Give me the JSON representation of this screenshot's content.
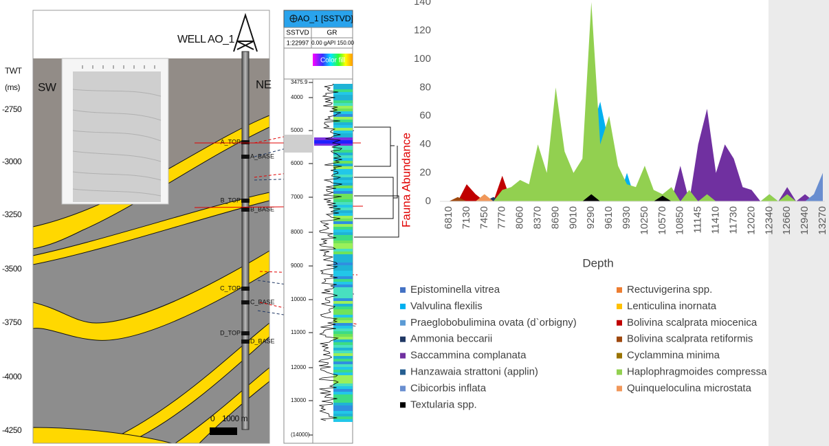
{
  "cross_section": {
    "well_name": "WELL AO_1",
    "axis_title": "TWT",
    "axis_unit": "(ms)",
    "left_label": "SW",
    "right_label": "NE",
    "twt_ticks": [
      "-2750",
      "-3000",
      "-3250",
      "-3500",
      "-3750",
      "-4000",
      "-4250"
    ],
    "horizons": [
      "A_TOP",
      "A_BASE",
      "B_TOP",
      "B_BASE",
      "C_TOP",
      "C_BASE",
      "D_TOP",
      "D_BASE"
    ],
    "scale_zero": "0",
    "scale_length": "1000 m"
  },
  "well_log": {
    "title": "AO_1 [SSTVD]",
    "depth_header": "SSTVD",
    "curve_header": "GR",
    "scale": "1:22997",
    "curve_range": "0.00 gAPI 150.00",
    "fill_label": "Color fill",
    "depths": [
      "3475.9",
      "4000",
      "5000",
      "6000",
      "7000",
      "8000",
      "9000",
      "10000",
      "11000",
      "12000",
      "13000",
      "(14000)"
    ]
  },
  "chart_data": {
    "type": "area",
    "x_label": "Depth",
    "y_label": "Fauna Abundance",
    "ylim": [
      0,
      140
    ],
    "yticks": [
      0,
      20,
      40,
      60,
      80,
      100,
      120,
      140
    ],
    "categories": [
      6810,
      null,
      7130,
      null,
      7450,
      null,
      7770,
      null,
      8060,
      null,
      8370,
      null,
      8690,
      null,
      9010,
      null,
      9290,
      null,
      9610,
      null,
      9930,
      null,
      10250,
      null,
      10570,
      null,
      10850,
      null,
      11145,
      null,
      11410,
      null,
      11730,
      null,
      12020,
      null,
      12340,
      null,
      12660,
      null,
      12940,
      null,
      13270
    ],
    "series": [
      {
        "name": "Epistominella vitrea",
        "color": "#4472c4",
        "values": [
          0,
          0,
          0,
          0,
          0,
          0,
          0,
          0,
          0,
          0,
          0,
          0,
          0,
          0,
          0,
          0,
          0,
          0,
          0,
          0,
          5,
          0,
          3,
          0,
          0,
          0,
          0,
          0,
          0,
          0,
          0,
          0,
          0,
          0,
          3,
          0,
          0,
          0,
          0,
          0,
          0,
          0,
          0
        ]
      },
      {
        "name": "Rectuvigerina spp.",
        "color": "#ed7d31",
        "values": [
          0,
          0,
          0,
          5,
          0,
          0,
          0,
          3,
          0,
          0,
          0,
          0,
          0,
          0,
          0,
          0,
          0,
          0,
          0,
          0,
          0,
          0,
          0,
          0,
          0,
          0,
          0,
          0,
          0,
          0,
          0,
          0,
          0,
          0,
          0,
          0,
          0,
          0,
          0,
          0,
          0,
          0,
          0
        ]
      },
      {
        "name": "Valvulina flexilis",
        "color": "#00b0f0",
        "values": [
          0,
          0,
          0,
          0,
          0,
          0,
          0,
          0,
          0,
          0,
          0,
          0,
          0,
          0,
          0,
          0,
          50,
          70,
          40,
          0,
          20,
          0,
          10,
          0,
          5,
          0,
          0,
          0,
          0,
          0,
          0,
          0,
          0,
          0,
          0,
          0,
          0,
          0,
          0,
          0,
          0,
          0,
          0
        ]
      },
      {
        "name": "Lenticulina inornata",
        "color": "#ffc000",
        "values": [
          0,
          0,
          0,
          0,
          0,
          0,
          0,
          0,
          0,
          0,
          0,
          0,
          0,
          0,
          0,
          0,
          0,
          0,
          0,
          0,
          0,
          0,
          0,
          0,
          0,
          0,
          0,
          0,
          0,
          0,
          0,
          0,
          0,
          0,
          0,
          0,
          0,
          0,
          0,
          0,
          3,
          0,
          5
        ]
      },
      {
        "name": "Praeglobobulimina ovata (d`orbigny)",
        "color": "#5b9bd5",
        "values": [
          0,
          0,
          0,
          0,
          0,
          0,
          0,
          0,
          0,
          0,
          0,
          0,
          0,
          0,
          0,
          0,
          0,
          0,
          0,
          0,
          0,
          0,
          25,
          0,
          0,
          0,
          0,
          0,
          0,
          0,
          0,
          0,
          0,
          0,
          0,
          0,
          5,
          0,
          0,
          0,
          0,
          0,
          0
        ]
      },
      {
        "name": "Bolivina scalprata miocenica",
        "color": "#c00000",
        "values": [
          0,
          0,
          12,
          5,
          0,
          0,
          18,
          0,
          0,
          8,
          0,
          5,
          0,
          0,
          0,
          0,
          0,
          0,
          0,
          0,
          0,
          0,
          0,
          0,
          0,
          0,
          0,
          0,
          0,
          0,
          0,
          0,
          0,
          0,
          0,
          0,
          0,
          0,
          0,
          0,
          0,
          0,
          0
        ]
      },
      {
        "name": "Ammonia beccarii",
        "color": "#203864",
        "values": [
          0,
          0,
          0,
          0,
          0,
          3,
          0,
          0,
          0,
          0,
          0,
          0,
          0,
          0,
          0,
          0,
          0,
          0,
          0,
          0,
          0,
          0,
          0,
          0,
          0,
          0,
          0,
          0,
          0,
          0,
          0,
          0,
          0,
          0,
          0,
          0,
          0,
          0,
          0,
          0,
          0,
          0,
          0
        ]
      },
      {
        "name": "Bolivina scalprata retiformis",
        "color": "#9e480e",
        "values": [
          0,
          3,
          0,
          0,
          0,
          0,
          0,
          0,
          0,
          0,
          0,
          0,
          0,
          0,
          0,
          0,
          0,
          0,
          0,
          0,
          0,
          0,
          0,
          0,
          0,
          0,
          0,
          0,
          0,
          0,
          0,
          0,
          0,
          0,
          0,
          0,
          0,
          0,
          0,
          0,
          0,
          0,
          0
        ]
      },
      {
        "name": "Saccammina complanata",
        "color": "#7030a0",
        "values": [
          0,
          0,
          0,
          0,
          0,
          0,
          0,
          0,
          0,
          0,
          0,
          10,
          20,
          0,
          0,
          0,
          0,
          0,
          0,
          0,
          0,
          0,
          0,
          0,
          5,
          0,
          25,
          0,
          40,
          65,
          20,
          40,
          30,
          10,
          8,
          0,
          0,
          0,
          10,
          0,
          5,
          0,
          0
        ]
      },
      {
        "name": "Cyclammina minima",
        "color": "#997300",
        "values": [
          0,
          0,
          0,
          0,
          0,
          0,
          0,
          4,
          0,
          0,
          0,
          0,
          0,
          0,
          0,
          0,
          0,
          0,
          0,
          0,
          0,
          0,
          0,
          0,
          0,
          0,
          0,
          0,
          0,
          0,
          0,
          0,
          0,
          0,
          0,
          0,
          0,
          0,
          0,
          0,
          0,
          0,
          0
        ]
      },
      {
        "name": "Hanzawaia strattoni (applin)",
        "color": "#255e91",
        "values": [
          0,
          0,
          0,
          0,
          0,
          0,
          0,
          0,
          0,
          0,
          0,
          0,
          0,
          0,
          0,
          0,
          0,
          0,
          0,
          8,
          0,
          0,
          0,
          0,
          0,
          0,
          0,
          0,
          0,
          0,
          0,
          0,
          0,
          0,
          0,
          0,
          0,
          0,
          0,
          0,
          0,
          0,
          0
        ]
      },
      {
        "name": "Haplophragmoides compressa",
        "color": "#92d050",
        "values": [
          0,
          0,
          0,
          0,
          5,
          0,
          8,
          10,
          15,
          12,
          40,
          20,
          80,
          35,
          20,
          30,
          140,
          40,
          60,
          25,
          12,
          10,
          25,
          8,
          5,
          10,
          0,
          8,
          0,
          5,
          0,
          0,
          0,
          0,
          0,
          0,
          5,
          0,
          5,
          0,
          0,
          3,
          0
        ]
      },
      {
        "name": "Cibicorbis inflata",
        "color": "#698ed0",
        "values": [
          0,
          0,
          0,
          0,
          0,
          0,
          0,
          0,
          0,
          0,
          0,
          0,
          0,
          0,
          0,
          0,
          0,
          0,
          0,
          0,
          0,
          0,
          0,
          0,
          0,
          0,
          0,
          0,
          0,
          0,
          0,
          0,
          0,
          0,
          0,
          0,
          0,
          0,
          0,
          0,
          0,
          5,
          20
        ]
      },
      {
        "name": "Quinqueloculina microstata",
        "color": "#f1975a",
        "values": [
          0,
          0,
          0,
          0,
          5,
          0,
          0,
          0,
          0,
          0,
          0,
          0,
          0,
          0,
          0,
          0,
          0,
          0,
          0,
          0,
          0,
          0,
          0,
          0,
          0,
          0,
          0,
          0,
          0,
          0,
          0,
          0,
          0,
          0,
          0,
          0,
          0,
          0,
          0,
          0,
          0,
          0,
          0
        ]
      },
      {
        "name": "Textularia spp.",
        "color": "#000000",
        "values": [
          0,
          0,
          0,
          0,
          0,
          0,
          0,
          0,
          0,
          0,
          0,
          0,
          0,
          0,
          0,
          0,
          5,
          0,
          0,
          0,
          0,
          0,
          0,
          0,
          4,
          0,
          0,
          0,
          0,
          0,
          0,
          0,
          0,
          0,
          0,
          0,
          0,
          0,
          0,
          0,
          0,
          0,
          0
        ]
      }
    ]
  }
}
